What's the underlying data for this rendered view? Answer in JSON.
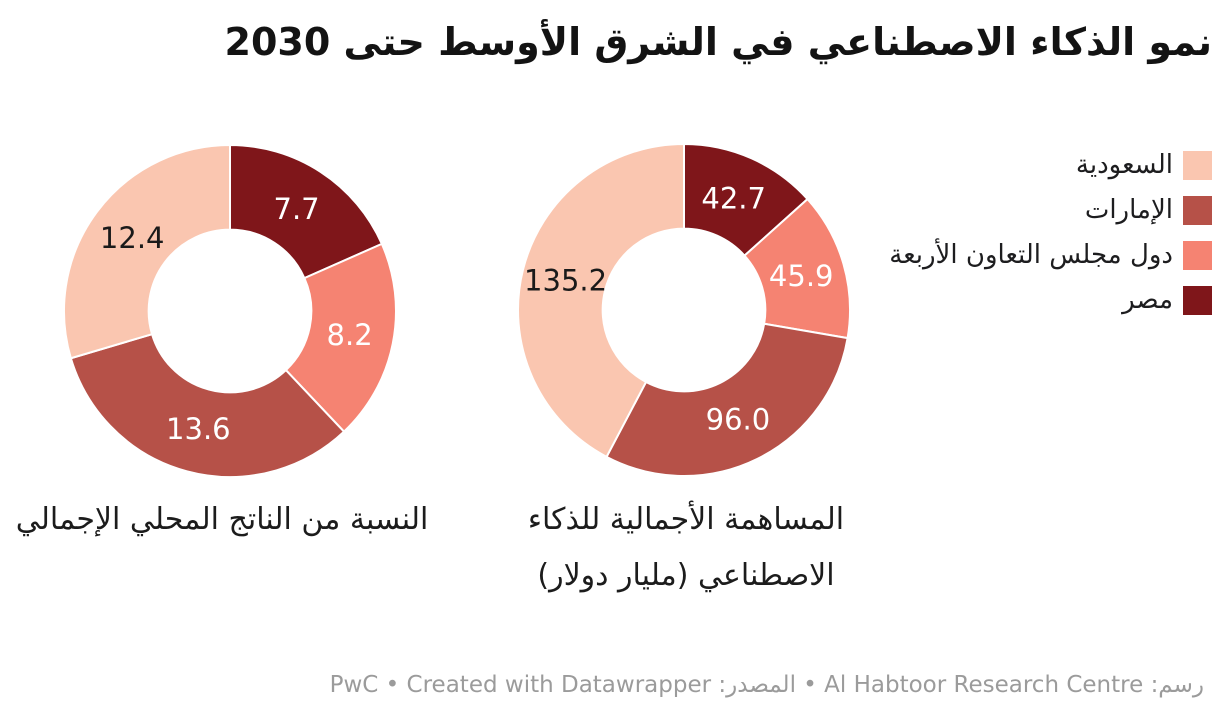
{
  "header": {
    "title": "نمو الذكاء الاصطناعي في الشرق الأوسط حتى 2030"
  },
  "legend": {
    "position": "top-right",
    "items": [
      {
        "id": "saudi-arabia",
        "label": "السعودية",
        "color": "#FAC6B0"
      },
      {
        "id": "uae",
        "label": "الإمارات",
        "color": "#B65148"
      },
      {
        "id": "gcc-four",
        "label": "دول مجلس التعاون الأربعة",
        "color": "#F58372"
      },
      {
        "id": "egypt",
        "label": "مصر",
        "color": "#7F161A"
      }
    ]
  },
  "chart_data": [
    {
      "type": "pie",
      "variant": "donut",
      "title": "النسبة من الناتج المحلي الإجمالي",
      "title_lines": "النسبة من الناتج المحلي الإجمالي",
      "categories": [
        "السعودية",
        "الإمارات",
        "دول مجلس التعاون الأربعة",
        "مصر"
      ],
      "values": [
        12.4,
        13.6,
        8.2,
        7.7
      ],
      "colors": [
        "#FAC6B0",
        "#B65148",
        "#F58372",
        "#7F161A"
      ],
      "data_label_colors": [
        "#1a1a1a",
        "#ffffff",
        "#ffffff",
        "#ffffff"
      ],
      "slice_ids": [
        "saudi-arabia",
        "uae",
        "gcc-four",
        "egypt"
      ],
      "start_position": "12-oclock",
      "category_order_direction": "counterclockwise",
      "inner_radius_ratio": 0.49
    },
    {
      "type": "pie",
      "variant": "donut",
      "title": "المساهمة الأجمالية للذكاء الاصطناعي (مليار دولار)",
      "title_lines": "المساهمة الأجمالية للذكاء\nالاصطناعي (مليار دولار)",
      "categories": [
        "السعودية",
        "الإمارات",
        "دول مجلس التعاون الأربعة",
        "مصر"
      ],
      "values": [
        135.2,
        96.0,
        45.9,
        42.7
      ],
      "colors": [
        "#FAC6B0",
        "#B65148",
        "#F58372",
        "#7F161A"
      ],
      "data_label_colors": [
        "#1a1a1a",
        "#ffffff",
        "#ffffff",
        "#ffffff"
      ],
      "slice_ids": [
        "saudi-arabia",
        "uae",
        "gcc-four",
        "egypt"
      ],
      "start_position": "12-oclock",
      "category_order_direction": "counterclockwise",
      "inner_radius_ratio": 0.49
    }
  ],
  "footer": {
    "byline_label": "رسم:",
    "byline": "Al Habtoor Research Centre",
    "separator": "•",
    "source_label": "المصدر:",
    "source": "PwC",
    "attribution": "Created with Datawrapper"
  }
}
